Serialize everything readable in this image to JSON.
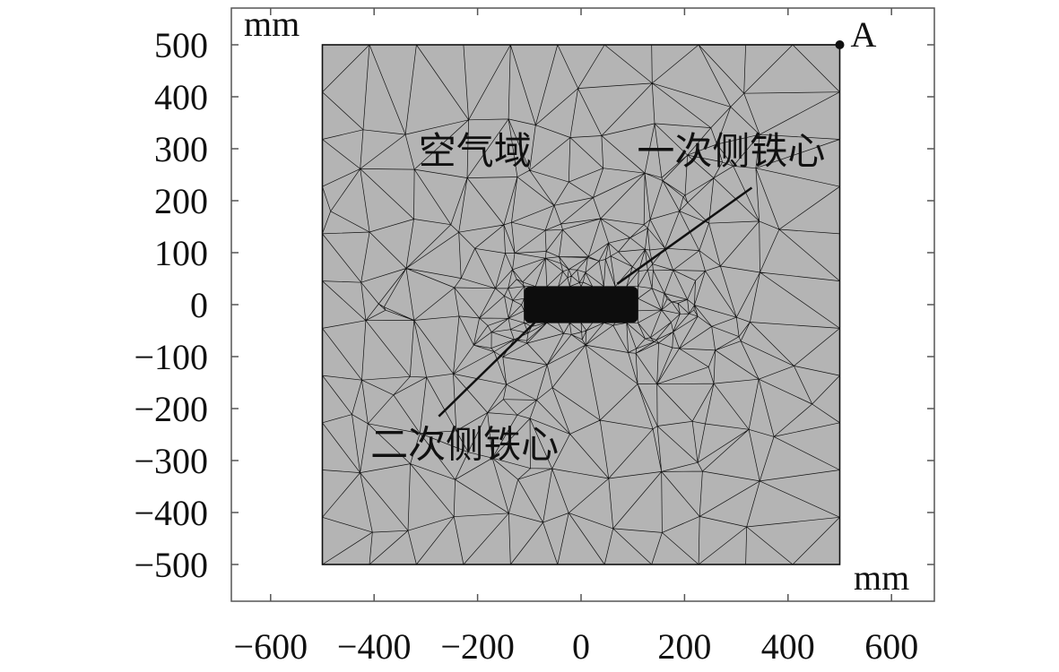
{
  "axes": {
    "x_unit": "mm",
    "y_unit": "mm",
    "x_range": [
      -680,
      680
    ],
    "y_range": [
      -575,
      575
    ],
    "x_ticks": [
      {
        "value": -600,
        "label": "−600"
      },
      {
        "value": -400,
        "label": "−400"
      },
      {
        "value": -200,
        "label": "−200"
      },
      {
        "value": 0,
        "label": "0"
      },
      {
        "value": 200,
        "label": "200"
      },
      {
        "value": 400,
        "label": "400"
      },
      {
        "value": 600,
        "label": "600"
      }
    ],
    "y_ticks": [
      {
        "value": 500,
        "label": "500"
      },
      {
        "value": 400,
        "label": "400"
      },
      {
        "value": 300,
        "label": "300"
      },
      {
        "value": 200,
        "label": "200"
      },
      {
        "value": 100,
        "label": "100"
      },
      {
        "value": 0,
        "label": "0"
      },
      {
        "value": -100,
        "label": "−100"
      },
      {
        "value": -200,
        "label": "−200"
      },
      {
        "value": -300,
        "label": "−300"
      },
      {
        "value": -400,
        "label": "−400"
      },
      {
        "value": -500,
        "label": "−500"
      }
    ],
    "grid": false
  },
  "domain": {
    "x": [
      -500,
      500
    ],
    "y": [
      -500,
      500
    ],
    "fill": "#b4b4b4",
    "mesh_color": "#111111"
  },
  "core": {
    "x": [
      -110,
      110
    ],
    "y": [
      -35,
      35
    ],
    "fill": "#0d0d0d"
  },
  "annotations": {
    "air_domain": {
      "text": "空气域",
      "x": -205,
      "y": 295
    },
    "primary_core": {
      "text": "一次侧铁心",
      "x": 290,
      "y": 295,
      "leader_from": [
        330,
        225
      ],
      "leader_to": [
        70,
        40
      ]
    },
    "secondary_core": {
      "text": "二次侧铁心",
      "x": -225,
      "y": -270,
      "leader_from": [
        -275,
        -215
      ],
      "leader_to": [
        -90,
        -35
      ]
    }
  },
  "point_a": {
    "label": "A",
    "x": 500,
    "y": 500
  }
}
